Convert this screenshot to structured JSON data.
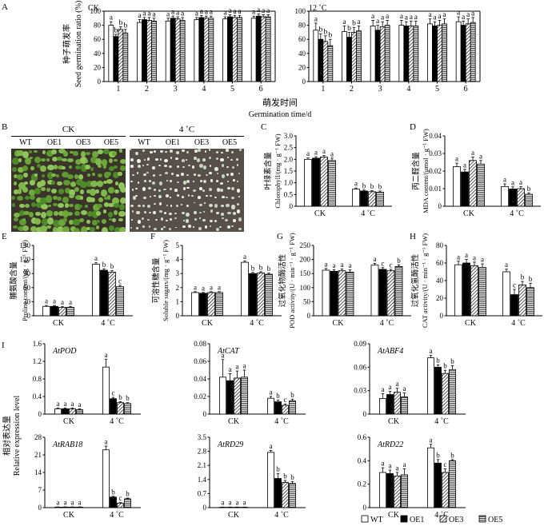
{
  "colors": {
    "wt_fill": "#ffffff",
    "oe1_fill": "#000000",
    "bar_stroke": "#000000",
    "green_dark": "#2e4e1c",
    "green_leaf": "#6da83a",
    "soil_ck": "#3a342a",
    "soil_cold": "#57504a",
    "seedling_cold": "#e4e8dc"
  },
  "legend": [
    "WT",
    "OE1",
    "OE3",
    "OE5"
  ],
  "panelA": {
    "letter": "A",
    "ylabel_cn": "种子萌发率",
    "ylabel_en": "Seed germination ratio (%)",
    "xlabel_cn": "萌发时间",
    "xlabel_en": "Germination time/d",
    "ylim": [
      0,
      100
    ],
    "yticks": [
      "0",
      "20",
      "40",
      "60",
      "80",
      "100"
    ],
    "days": [
      "1",
      "2",
      "3",
      "4",
      "5",
      "6"
    ],
    "CK": {
      "label": "CK",
      "values": [
        [
          80,
          64,
          74,
          69
        ],
        [
          84,
          88,
          87,
          86
        ],
        [
          86,
          90,
          89,
          87
        ],
        [
          88,
          91,
          90,
          90
        ],
        [
          89,
          92,
          91,
          91
        ],
        [
          90,
          93,
          92,
          92
        ]
      ],
      "err": [
        [
          5,
          3,
          4,
          5
        ],
        [
          4,
          3,
          4,
          4
        ],
        [
          4,
          3,
          3,
          4
        ],
        [
          3,
          3,
          3,
          3
        ],
        [
          3,
          3,
          3,
          3
        ],
        [
          3,
          3,
          3,
          3
        ]
      ],
      "letters": [
        [
          "a",
          "b",
          "b",
          "b"
        ],
        [
          "a",
          "a",
          "a",
          "a"
        ],
        [
          "a",
          "a",
          "a",
          "a"
        ],
        [
          "a",
          "a",
          "a",
          "a"
        ],
        [
          "a",
          "a",
          "a",
          "a"
        ],
        [
          "a",
          "a",
          "a",
          "a"
        ]
      ]
    },
    "cold": {
      "label": "12 ˚C",
      "values": [
        [
          73,
          60,
          57,
          51
        ],
        [
          71,
          63,
          70,
          72
        ],
        [
          79,
          73,
          78,
          80
        ],
        [
          80,
          79,
          79,
          79
        ],
        [
          82,
          79,
          80,
          82
        ],
        [
          85,
          80,
          82,
          84
        ]
      ],
      "err": [
        [
          10,
          8,
          8,
          9
        ],
        [
          8,
          7,
          7,
          7
        ],
        [
          8,
          7,
          7,
          7
        ],
        [
          7,
          6,
          7,
          7
        ],
        [
          7,
          6,
          7,
          7
        ],
        [
          7,
          6,
          7,
          7
        ]
      ],
      "letters": [
        [
          "a",
          "b",
          "b",
          "b"
        ],
        [
          "a",
          "b",
          "b",
          "a"
        ],
        [
          "a",
          "a",
          "a",
          "a"
        ],
        [
          "a",
          "a",
          "a",
          "a"
        ],
        [
          "a",
          "a",
          "a",
          "a"
        ],
        [
          "a",
          "a",
          "a",
          "a"
        ]
      ]
    }
  },
  "panelB": {
    "letter": "B",
    "ck": "CK",
    "cold": "4 ˚C",
    "lines": [
      "WT",
      "OE1",
      "OE3",
      "OE5"
    ]
  },
  "small": [
    {
      "letter": "C",
      "ycn": "叶绿素含量",
      "yen": "Chlorophyll/(mg · g⁻¹ FW)",
      "ylim": [
        0,
        3
      ],
      "yticks": [
        "0",
        "0.5",
        "1.0",
        "1.5",
        "2.0",
        "2.5",
        "3.0"
      ],
      "groups": [
        "CK",
        "4 ˚C"
      ],
      "values": [
        [
          2.0,
          2.05,
          2.1,
          1.95
        ],
        [
          0.73,
          0.65,
          0.62,
          0.6
        ]
      ],
      "err": [
        [
          0.06,
          0.06,
          0.06,
          0.1
        ],
        [
          0.05,
          0.04,
          0.04,
          0.05
        ]
      ],
      "letters": [
        [
          "a",
          "a",
          "a",
          "a"
        ],
        [
          "a",
          "b",
          "b",
          "b"
        ]
      ]
    },
    {
      "letter": "D",
      "ycn": "丙二醛含量",
      "yen": "MDA content/(μmol · g⁻¹ FW)",
      "ylim": [
        0,
        0.04
      ],
      "yticks": [
        "0",
        "0.01",
        "0.02",
        "0.03",
        "0.04"
      ],
      "groups": [
        "CK",
        "4 ˚C"
      ],
      "values": [
        [
          0.0225,
          0.0195,
          0.026,
          0.024
        ],
        [
          0.0112,
          0.0098,
          0.01,
          0.0068
        ]
      ],
      "err": [
        [
          0.002,
          0.0015,
          0.002,
          0.002
        ],
        [
          0.0015,
          0.0012,
          0.0012,
          0.0008
        ]
      ],
      "letters": [
        [
          "a",
          "a",
          "a",
          "a"
        ],
        [
          "a",
          "a",
          "a",
          "b"
        ]
      ]
    },
    {
      "letter": "E",
      "ycn": "脯氨酸含量",
      "yen": "Proline content/(μg · g⁻¹ FW)",
      "ylim": [
        0,
        150
      ],
      "yticks": [
        "0",
        "30",
        "60",
        "90",
        "120",
        "150"
      ],
      "groups": [
        "CK",
        "4 ˚C"
      ],
      "values": [
        [
          20,
          20,
          18,
          18
        ],
        [
          110,
          97,
          93,
          62
        ]
      ],
      "err": [
        [
          2,
          2,
          2,
          2
        ],
        [
          3,
          3,
          3,
          3
        ]
      ],
      "letters": [
        [
          "a",
          "a",
          "a",
          "a"
        ],
        [
          "a",
          "b",
          "b",
          "c"
        ]
      ]
    },
    {
      "letter": "F",
      "ycn": "可溶性糖含量",
      "yen": "Soluble sugars/(mg · g⁻¹ FW)",
      "ylim": [
        0,
        5
      ],
      "yticks": [
        "0",
        "1",
        "2",
        "3",
        "4",
        "5"
      ],
      "groups": [
        "CK",
        "4 ˚C"
      ],
      "values": [
        [
          1.65,
          1.6,
          1.65,
          1.65
        ],
        [
          3.8,
          3.0,
          3.05,
          2.95
        ]
      ],
      "err": [
        [
          0.06,
          0.06,
          0.06,
          0.06
        ],
        [
          0.1,
          0.08,
          0.08,
          0.08
        ]
      ],
      "letters": [
        [
          "a",
          "a",
          "a",
          "a"
        ],
        [
          "a",
          "b",
          "b",
          "b"
        ]
      ]
    },
    {
      "letter": "G",
      "ycn": "过氧化物酶活性",
      "yen": "POD activity/(U · min⁻¹ · g⁻¹ FW)",
      "ylim": [
        0,
        250
      ],
      "yticks": [
        "0",
        "50",
        "100",
        "150",
        "200",
        "250"
      ],
      "groups": [
        "CK",
        "4 ˚C"
      ],
      "values": [
        [
          162,
          158,
          160,
          155
        ],
        [
          180,
          165,
          160,
          175
        ]
      ],
      "err": [
        [
          6,
          6,
          6,
          8
        ],
        [
          6,
          6,
          5,
          6
        ]
      ],
      "letters": [
        [
          "a",
          "a",
          "a",
          "a"
        ],
        [
          "a",
          "c",
          "c",
          "b"
        ]
      ]
    },
    {
      "letter": "H",
      "ycn": "过氧化氢酶活性",
      "yen": "CAT activity/(U · min⁻¹ · g⁻¹ FW)",
      "ylim": [
        0,
        80
      ],
      "yticks": [
        "0",
        "20",
        "40",
        "60",
        "80"
      ],
      "groups": [
        "CK",
        "4 ˚C"
      ],
      "values": [
        [
          58,
          60,
          57,
          55
        ],
        [
          50,
          24,
          35,
          32
        ]
      ],
      "err": [
        [
          4,
          4,
          4,
          4
        ],
        [
          3,
          6,
          4,
          5
        ]
      ],
      "letters": [
        [
          "a",
          "a",
          "a",
          "a"
        ],
        [
          "a",
          "c",
          "b",
          "b"
        ]
      ]
    }
  ],
  "panelI": {
    "letter": "I",
    "ycn": "相对表达量",
    "yen": "Relative expression level",
    "groups": [
      "CK",
      "4 ˚C"
    ],
    "genes": [
      {
        "name": "AtPOD",
        "ylim": [
          0,
          1.6
        ],
        "yticks": [
          "0",
          "0.4",
          "0.8",
          "1.2",
          "1.6"
        ],
        "values": [
          [
            0.12,
            0.12,
            0.12,
            0.1
          ],
          [
            1.07,
            0.35,
            0.26,
            0.24
          ]
        ],
        "err": [
          [
            0.02,
            0.02,
            0.02,
            0.02
          ],
          [
            0.18,
            0.03,
            0.02,
            0.02
          ]
        ],
        "letters": [
          [
            "a",
            "a",
            "a",
            "a"
          ],
          [
            "a",
            "c",
            "b",
            "b"
          ]
        ]
      },
      {
        "name": "AtCAT",
        "ylim": [
          0,
          0.08
        ],
        "yticks": [
          "0",
          "0.02",
          "0.04",
          "0.06",
          "0.08"
        ],
        "values": [
          [
            0.042,
            0.038,
            0.041,
            0.042
          ],
          [
            0.018,
            0.014,
            0.01,
            0.015
          ]
        ],
        "err": [
          [
            0.02,
            0.008,
            0.008,
            0.008
          ],
          [
            0.002,
            0.002,
            0.0015,
            0.002
          ]
        ],
        "letters": [
          [
            "a",
            "a",
            "a",
            "a"
          ],
          [
            "a",
            "b",
            "c",
            "b"
          ]
        ]
      },
      {
        "name": "AtABF4",
        "ylim": [
          0,
          0.09
        ],
        "yticks": [
          "0",
          "0.03",
          "0.06",
          "0.09"
        ],
        "values": [
          [
            0.02,
            0.025,
            0.028,
            0.022
          ],
          [
            0.072,
            0.06,
            0.052,
            0.057
          ]
        ],
        "err": [
          [
            0.006,
            0.004,
            0.005,
            0.005
          ],
          [
            0.003,
            0.003,
            0.004,
            0.005
          ]
        ],
        "letters": [
          [
            "a",
            "a",
            "a",
            "a"
          ],
          [
            "a",
            "b",
            "b",
            "b"
          ]
        ]
      },
      {
        "name": "AtRAB18",
        "ylim": [
          0,
          28
        ],
        "yticks": [
          "0",
          "7",
          "14",
          "21",
          "28"
        ],
        "values": [
          [
            0.2,
            0.2,
            0.2,
            0.2
          ],
          [
            23,
            4.2,
            1.8,
            3.5
          ]
        ],
        "err": [
          [
            0.1,
            0.1,
            0.1,
            0.1
          ],
          [
            1.5,
            0.3,
            0.2,
            0.3
          ]
        ],
        "letters": [
          [
            "a",
            "a",
            "a",
            "a"
          ],
          [
            "a",
            "b",
            "c",
            "b"
          ]
        ]
      },
      {
        "name": "AtRD29",
        "ylim": [
          0,
          3.5
        ],
        "yticks": [
          "0",
          "0.7",
          "1.4",
          "2.1",
          "2.8",
          "3.5"
        ],
        "values": [
          [
            0.02,
            0.02,
            0.02,
            0.02
          ],
          [
            2.75,
            1.45,
            1.25,
            1.2
          ]
        ],
        "err": [
          [
            0.01,
            0.01,
            0.01,
            0.01
          ],
          [
            0.1,
            0.25,
            0.1,
            0.1
          ]
        ],
        "letters": [
          [
            "a",
            "a",
            "a",
            "a"
          ],
          [
            "a",
            "b",
            "b",
            "b"
          ]
        ]
      },
      {
        "name": "AtRD22",
        "ylim": [
          0,
          0.6
        ],
        "yticks": [
          "0",
          "0.2",
          "0.4",
          "0.6"
        ],
        "values": [
          [
            0.3,
            0.29,
            0.27,
            0.28
          ],
          [
            0.51,
            0.38,
            0.3,
            0.4
          ]
        ],
        "err": [
          [
            0.04,
            0.03,
            0.03,
            0.05
          ],
          [
            0.03,
            0.03,
            0.03,
            0.01
          ]
        ],
        "letters": [
          [
            "a",
            "a",
            "a",
            "a"
          ],
          [
            "a",
            "b",
            "c",
            "b"
          ]
        ]
      }
    ]
  }
}
